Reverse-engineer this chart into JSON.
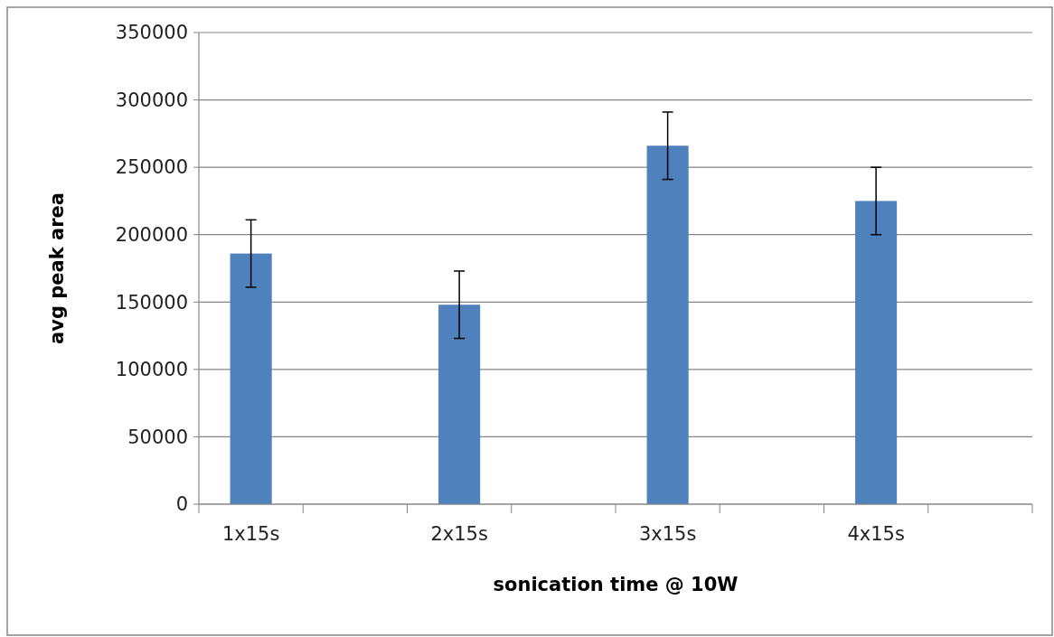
{
  "chart_data": {
    "type": "bar",
    "xlabel": "sonication time @ 10W",
    "ylabel": "avg peak area",
    "categories": [
      "1x15s",
      null,
      "2x15s",
      null,
      "3x15s",
      null,
      "4x15s",
      null
    ],
    "values": [
      186000,
      null,
      148000,
      null,
      266000,
      null,
      225000,
      null
    ],
    "errors": [
      25000,
      null,
      25000,
      null,
      25000,
      null,
      25000,
      null
    ],
    "color": "#4f81bd",
    "ylim": [
      0,
      350000
    ],
    "yticks": [
      0,
      50000,
      100000,
      150000,
      200000,
      250000,
      300000,
      350000
    ],
    "grid": "y"
  }
}
